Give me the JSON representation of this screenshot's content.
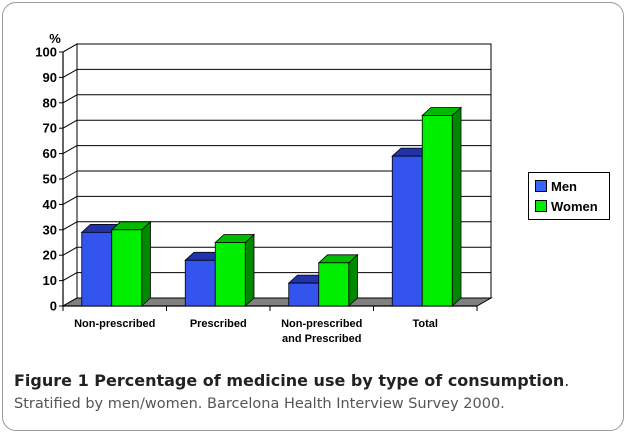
{
  "chart_data": {
    "type": "bar",
    "ylabel": "%",
    "ylim": [
      0,
      100
    ],
    "yticks": [
      0,
      10,
      20,
      30,
      40,
      50,
      60,
      70,
      80,
      90,
      100
    ],
    "categories": [
      [
        "Non-prescribed"
      ],
      [
        "Prescribed"
      ],
      [
        "Non-prescribed",
        "and Prescribed"
      ],
      [
        "Total"
      ]
    ],
    "series": [
      {
        "name": "Men",
        "color": "#3366ff",
        "values": [
          29,
          18,
          9,
          59
        ]
      },
      {
        "name": "Women",
        "color": "#00ee00",
        "values": [
          30,
          25,
          17,
          75
        ]
      }
    ],
    "grid": true,
    "legend": "right"
  },
  "caption": {
    "title": "Figure 1 Percentage of medicine use by type of consumption",
    "title_end": ".",
    "subtitle": "Stratified by men/women. Barcelona Health Interview Survey 2000."
  }
}
